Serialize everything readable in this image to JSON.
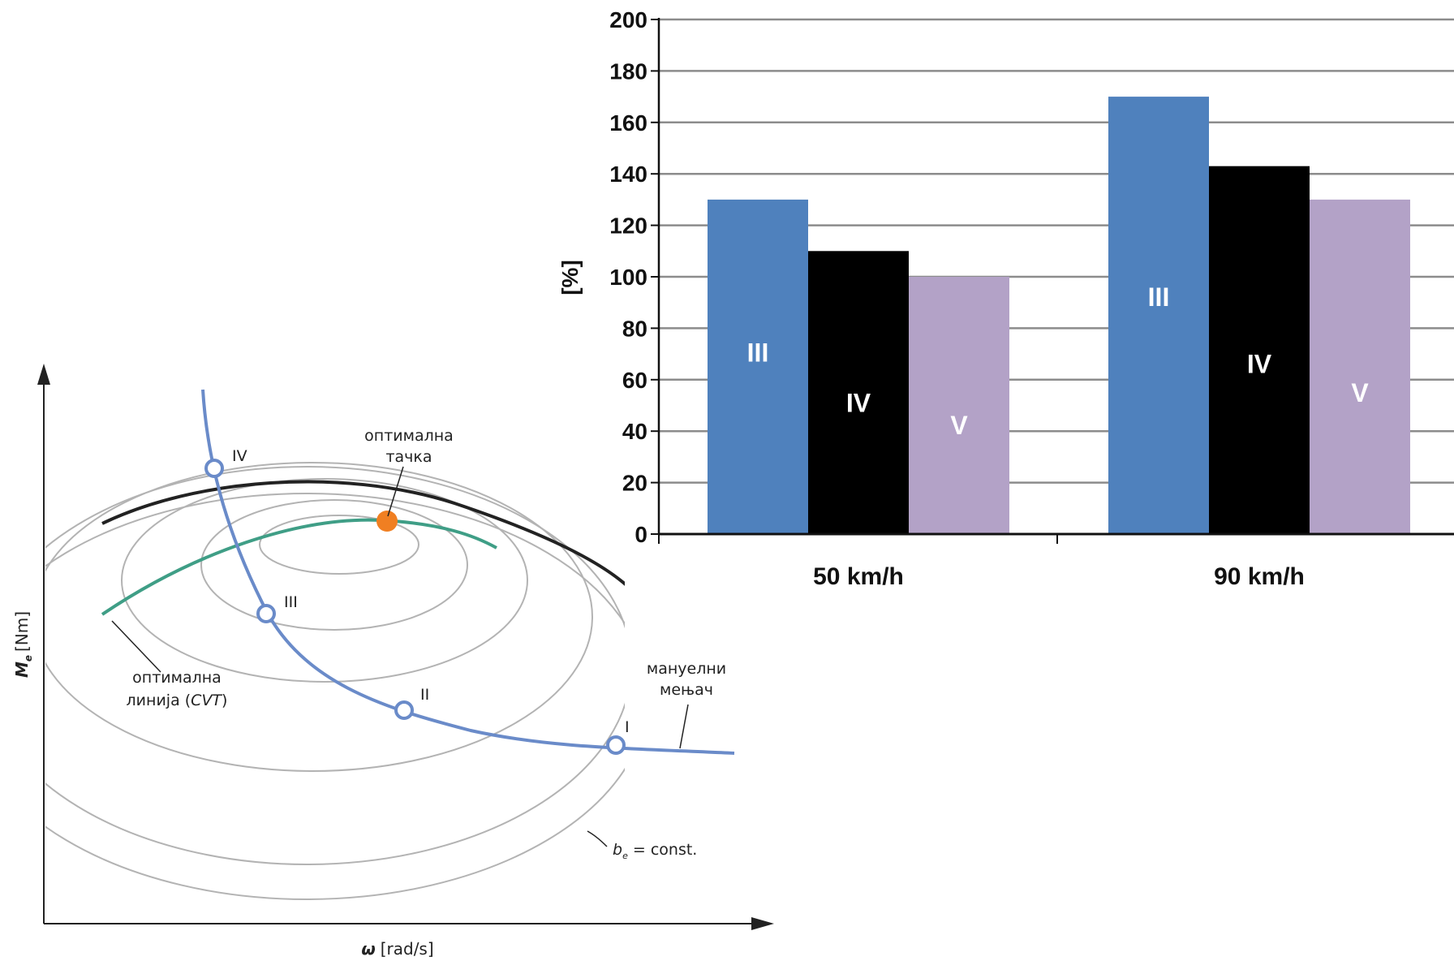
{
  "diagram": {
    "x_axis_symbol": "ω",
    "x_axis_unit": "[rad/s]",
    "y_axis_symbol": "M",
    "y_axis_subscript": "e",
    "y_axis_unit": "[Nm]",
    "optimal_point_label_1": "оптимална",
    "optimal_point_label_2": "тачка",
    "optimal_line_label_1": "оптимална",
    "optimal_line_label_2_prefix": "линија (",
    "optimal_line_label_2_italic": "CVT",
    "optimal_line_label_2_suffix": ")",
    "manual_label_1": "мануелни",
    "manual_label_2": "мењач",
    "contour_label_symbol": "b",
    "contour_label_subscript": "e",
    "contour_label_rest": " = const.",
    "gear_labels": [
      "IV",
      "III",
      "II",
      "I"
    ],
    "colors": {
      "gear_curve": "#6a8bc9",
      "optimal_line": "#3f9e86",
      "optimal_point": "#f07f22",
      "boundary": "#222222",
      "contours": "#b3b3b3"
    }
  },
  "chart_data": {
    "type": "bar",
    "categories": [
      "50 km/h",
      "90 km/h"
    ],
    "series": [
      {
        "name": "III",
        "values": [
          130,
          170
        ],
        "color": "#4f81bd"
      },
      {
        "name": "IV",
        "values": [
          110,
          143
        ],
        "color": "#000000"
      },
      {
        "name": "V",
        "values": [
          100,
          130
        ],
        "color": "#b3a2c7"
      }
    ],
    "ylabel": "[%]",
    "xlabel": "",
    "title": "",
    "ylim": [
      0,
      200
    ],
    "yticks": [
      0,
      20,
      40,
      60,
      80,
      100,
      120,
      140,
      160,
      180,
      200
    ],
    "grid": true,
    "legend": "none"
  }
}
